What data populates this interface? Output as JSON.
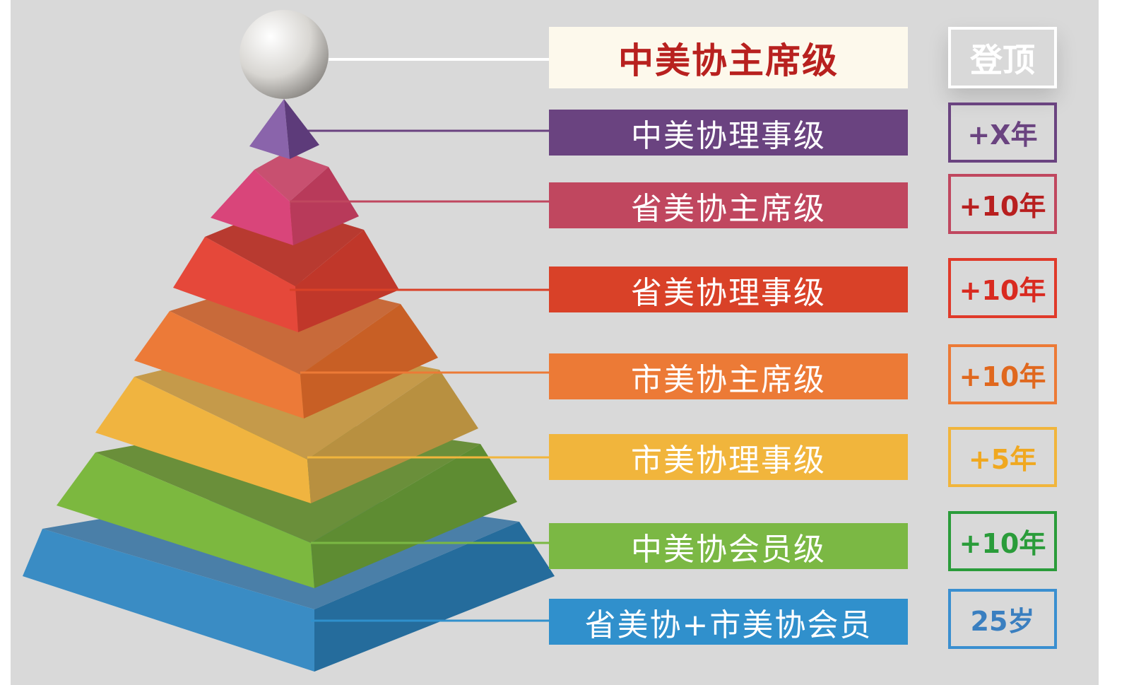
{
  "levels": [
    {
      "label": "中美协主席级",
      "badge": "登顶",
      "bar_color": "#fdf9ec",
      "text_color": "#b8211f",
      "badge_color": "#ffffff"
    },
    {
      "label": "中美协理事级",
      "badge": "+X年",
      "bar_color": "#6a4380",
      "text_color": "#ffffff",
      "badge_color": "#6a4380"
    },
    {
      "label": "省美协主席级",
      "badge": "+10年",
      "bar_color": "#c0475f",
      "text_color": "#ffffff",
      "badge_color": "#c0475f",
      "badge_text_color": "#b81f1f"
    },
    {
      "label": "省美协理事级",
      "badge": "+10年",
      "bar_color": "#d94128",
      "text_color": "#ffffff",
      "badge_color": "#e03a2a",
      "badge_text_color": "#d92a20"
    },
    {
      "label": "市美协主席级",
      "badge": "+10年",
      "bar_color": "#ec7a36",
      "text_color": "#ffffff",
      "badge_color": "#ec7a36",
      "badge_text_color": "#e0681e"
    },
    {
      "label": "市美协理事级",
      "badge": "+5年",
      "bar_color": "#f1b53c",
      "text_color": "#ffffff",
      "badge_color": "#f1b53c",
      "badge_text_color": "#f0a820"
    },
    {
      "label": "中美协会员级",
      "badge": "+10年",
      "bar_color": "#7bb844",
      "text_color": "#ffffff",
      "badge_color": "#2a9c3a",
      "badge_text_color": "#2a9c3a"
    },
    {
      "label": "省美协+市美协会员",
      "badge": "25岁",
      "bar_color": "#3090cc",
      "text_color": "#ffffff",
      "badge_color": "#3a8fd0",
      "badge_text_color": "#3a7fc0"
    }
  ]
}
